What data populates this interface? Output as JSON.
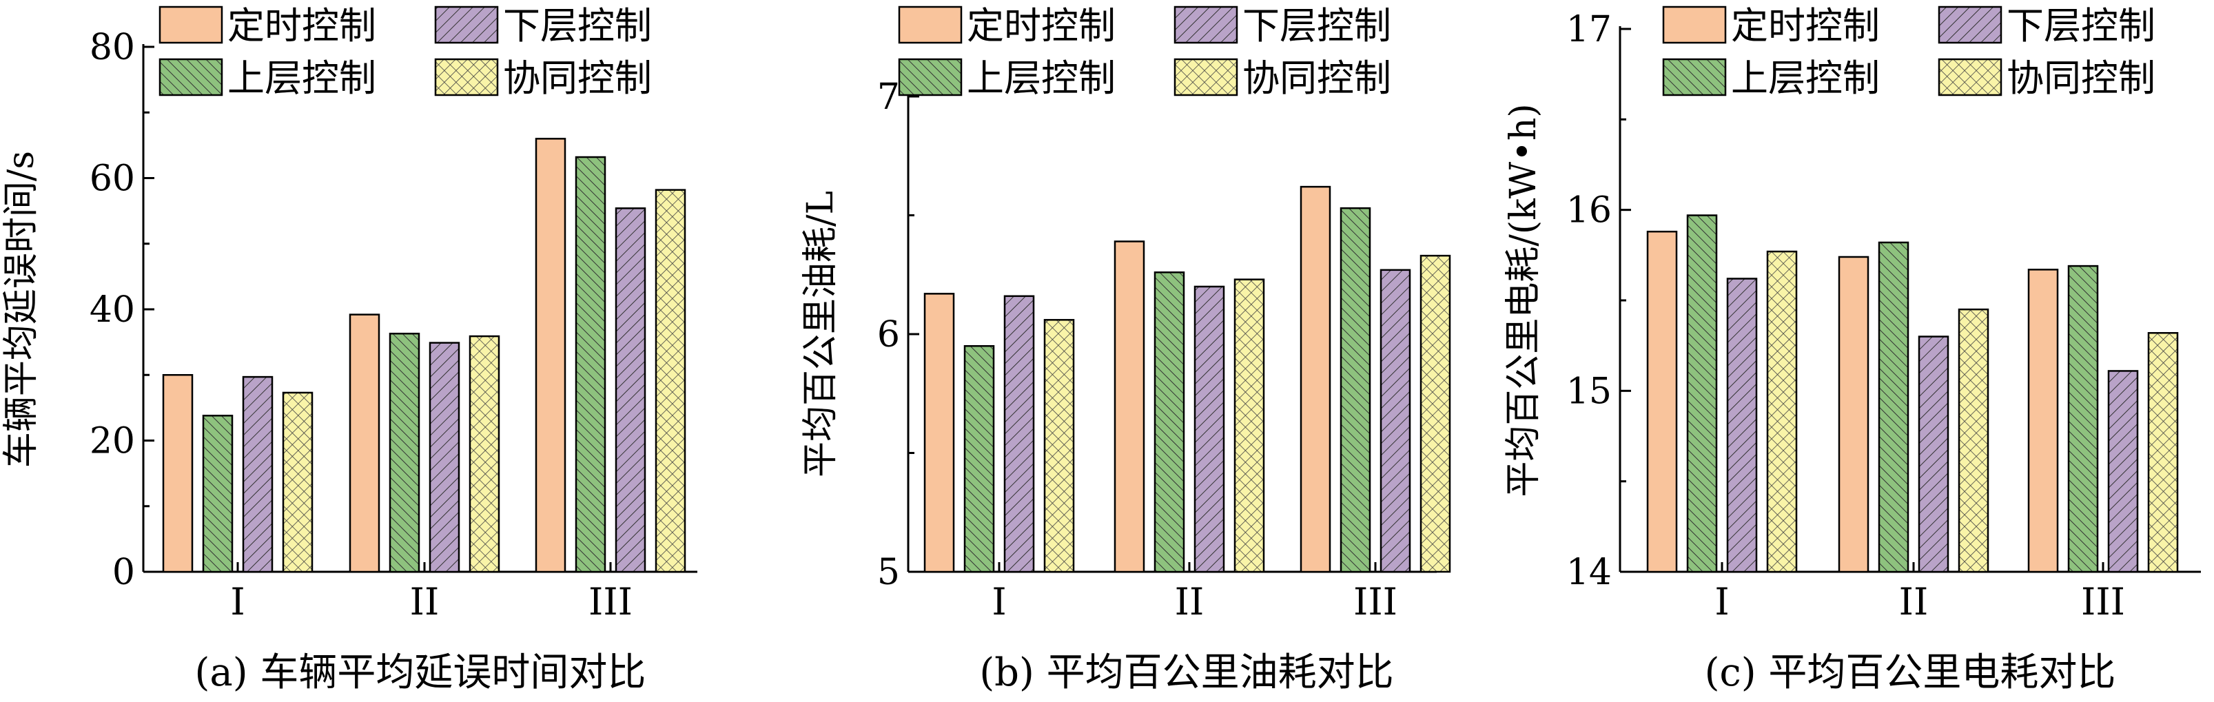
{
  "chart_data": [
    {
      "type": "bar",
      "caption": "(a) 车辆平均延误时间对比",
      "ylabel": "车辆平均延误时间/s",
      "categories": [
        "I",
        "II",
        "III"
      ],
      "ylim": [
        0,
        80
      ],
      "yticks": [
        "0",
        "20",
        "40",
        "60",
        "80"
      ],
      "series": [
        {
          "name": "定时控制",
          "values": [
            30.0,
            39.2,
            66.0
          ]
        },
        {
          "name": "上层控制",
          "values": [
            23.8,
            36.3,
            63.2
          ]
        },
        {
          "name": "下层控制",
          "values": [
            29.7,
            34.9,
            55.4
          ]
        },
        {
          "name": "协同控制",
          "values": [
            27.3,
            35.9,
            58.2
          ]
        }
      ],
      "legend": "top-right"
    },
    {
      "type": "bar",
      "caption": "(b) 平均百公里油耗对比",
      "ylabel": "平均百公里油耗/L",
      "categories": [
        "I",
        "II",
        "III"
      ],
      "ylim": [
        5,
        7
      ],
      "yticks": [
        "5",
        "6",
        "7"
      ],
      "series": [
        {
          "name": "定时控制",
          "values": [
            6.17,
            6.39,
            6.62
          ]
        },
        {
          "name": "上层控制",
          "values": [
            5.95,
            6.26,
            6.53
          ]
        },
        {
          "name": "下层控制",
          "values": [
            6.16,
            6.2,
            6.27
          ]
        },
        {
          "name": "协同控制",
          "values": [
            6.06,
            6.23,
            6.33
          ]
        }
      ],
      "legend": "top-right"
    },
    {
      "type": "bar",
      "caption": "(c) 平均百公里电耗对比",
      "ylabel": "平均百公里电耗/(kW•h)",
      "categories": [
        "I",
        "II",
        "III"
      ],
      "ylim": [
        14,
        17
      ],
      "yticks": [
        "14",
        "15",
        "16",
        "17"
      ],
      "series": [
        {
          "name": "定时控制",
          "values": [
            15.88,
            15.74,
            15.67
          ]
        },
        {
          "name": "上层控制",
          "values": [
            15.97,
            15.82,
            15.69
          ]
        },
        {
          "name": "下层控制",
          "values": [
            15.62,
            15.3,
            15.11
          ]
        },
        {
          "name": "协同控制",
          "values": [
            15.77,
            15.45,
            15.32
          ]
        }
      ],
      "legend": "top-right"
    }
  ],
  "colors": {
    "定时控制": "#f9c49c",
    "上层控制": "#8ec27e",
    "下层控制": "#b9a3c8",
    "协同控制": "#f9f4a8"
  }
}
